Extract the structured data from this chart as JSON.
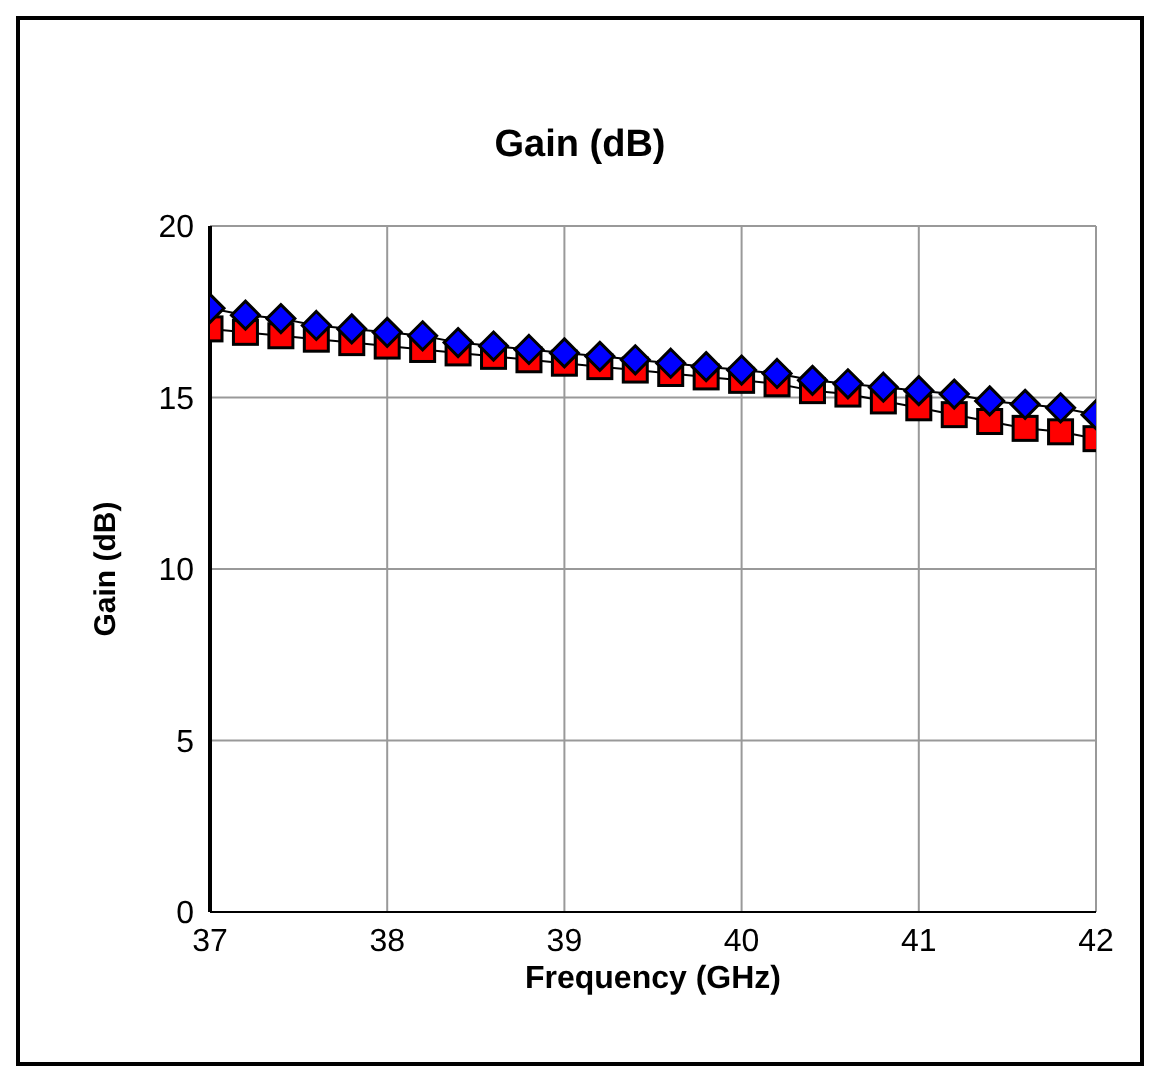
{
  "chart_data": {
    "type": "line",
    "title": "Gain (dB)",
    "xlabel": "Frequency (GHz)",
    "ylabel": "Gain (dB)",
    "x": [
      37,
      37.2,
      37.4,
      37.6,
      37.8,
      38,
      38.2,
      38.4,
      38.6,
      38.8,
      39,
      39.2,
      39.4,
      39.6,
      39.8,
      40,
      40.2,
      40.4,
      40.6,
      40.8,
      41,
      41.2,
      41.4,
      41.6,
      41.8,
      42
    ],
    "series": [
      {
        "color": "#ff0000",
        "marker": "square",
        "values": [
          17.0,
          16.9,
          16.8,
          16.7,
          16.6,
          16.5,
          16.4,
          16.3,
          16.2,
          16.1,
          16.0,
          15.9,
          15.8,
          15.7,
          15.6,
          15.5,
          15.4,
          15.2,
          15.1,
          14.9,
          14.7,
          14.5,
          14.3,
          14.1,
          14.0,
          13.8
        ]
      },
      {
        "color": "#0000ff",
        "marker": "diamond",
        "values": [
          17.6,
          17.4,
          17.3,
          17.1,
          17.0,
          16.9,
          16.8,
          16.6,
          16.5,
          16.4,
          16.3,
          16.2,
          16.1,
          16.0,
          15.9,
          15.8,
          15.7,
          15.5,
          15.4,
          15.3,
          15.2,
          15.1,
          14.9,
          14.8,
          14.7,
          14.5
        ]
      }
    ],
    "xlim": [
      37,
      42
    ],
    "xticks": [
      37,
      38,
      39,
      40,
      41,
      42
    ],
    "ylim": [
      0,
      20
    ],
    "yticks": [
      0,
      5,
      10,
      15,
      20
    ],
    "grid": true,
    "legend": false,
    "line_style": "solid"
  }
}
